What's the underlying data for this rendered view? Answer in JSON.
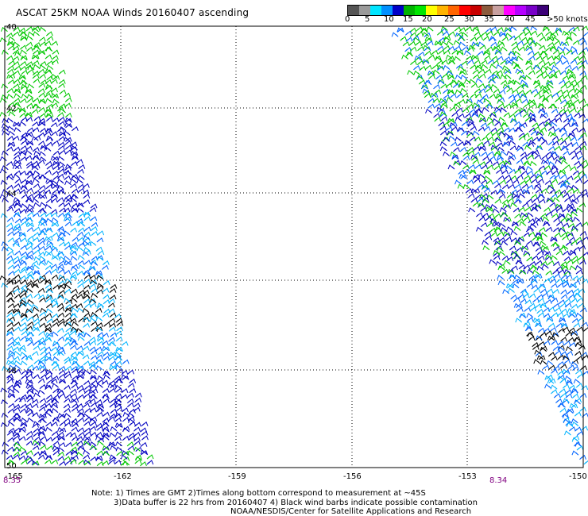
{
  "title": "ASCAT 25KM NOAA Winds 20160407 ascending",
  "legend": {
    "colors": [
      "#555555",
      "#9a9a9a",
      "#00e5ff",
      "#0090ff",
      "#0000c8",
      "#00b400",
      "#00e600",
      "#ffff00",
      "#ffb400",
      "#ff6400",
      "#ff0000",
      "#c80000",
      "#8b5a3c",
      "#c8a0a0",
      "#ff00ff",
      "#b400ff",
      "#7800c8",
      "#3c0078"
    ],
    "labels": [
      "0",
      "5",
      "10",
      "15",
      "20",
      "25",
      "30",
      "35",
      "40",
      "45",
      ">50 knots"
    ]
  },
  "map": {
    "lon_ticks": [
      "-165",
      "-162",
      "-159",
      "-156",
      "-153",
      "-150"
    ],
    "lat_ticks": [
      "40",
      "42",
      "44",
      "46",
      "48",
      "50"
    ],
    "pass_labels": [
      "8.35",
      "8.34"
    ]
  },
  "notes": {
    "line1": "Note: 1) Times are GMT 2)Times along bottom correspond to measurement at ~45S",
    "line2": "3)Data buffer is 22 hrs from 20160407 4) Black wind barbs indicate possible contamination",
    "line3": "NOAA/NESDIS/Center for Satellite Applications and Research"
  },
  "barb_colors": {
    "green": "#00c800",
    "dark_blue": "#0000c0",
    "blue": "#0064ff",
    "cyan": "#00b4ff",
    "black": "#000000"
  }
}
